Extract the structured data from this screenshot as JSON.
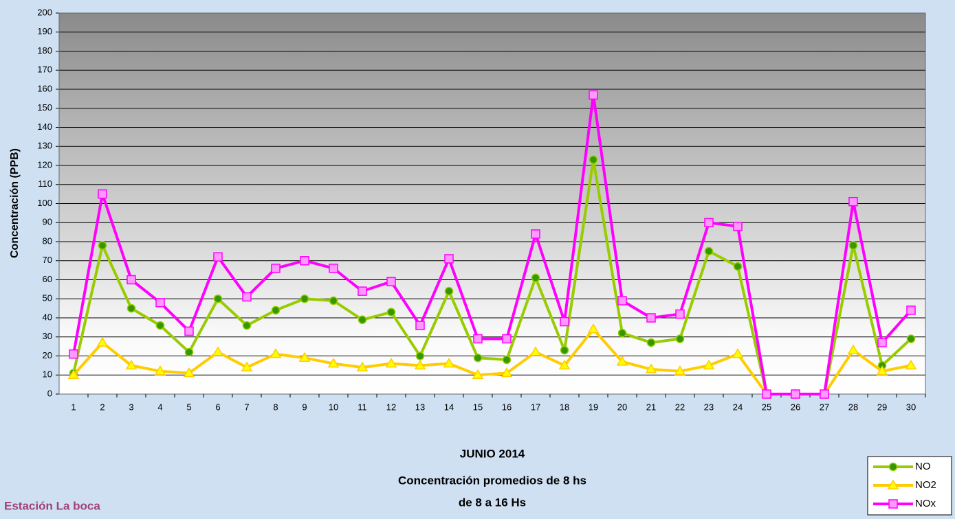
{
  "chart_data": {
    "type": "line",
    "title": [
      "JUNIO 2014",
      "Concentración promedios de 8 hs",
      "de 8 a 16 Hs"
    ],
    "note": "Estación La boca",
    "y_label": "Concentración (PPB)",
    "categories": [
      "1",
      "2",
      "3",
      "4",
      "5",
      "6",
      "7",
      "8",
      "9",
      "10",
      "11",
      "12",
      "13",
      "14",
      "15",
      "16",
      "17",
      "18",
      "19",
      "20",
      "21",
      "22",
      "23",
      "24",
      "25",
      "26",
      "27",
      "28",
      "29",
      "30"
    ],
    "series": [
      {
        "name": "NO",
        "color": "#99cc00",
        "marker": "circle",
        "marker_color": "#339900",
        "values": [
          11,
          78,
          45,
          36,
          22,
          50,
          36,
          44,
          50,
          49,
          39,
          43,
          20,
          54,
          19,
          18,
          61,
          23,
          123,
          32,
          27,
          29,
          75,
          67,
          0,
          0,
          0,
          78,
          15,
          29
        ]
      },
      {
        "name": "NO2",
        "color": "#ffcc00",
        "marker": "triangle",
        "marker_color": "#ffff00",
        "values": [
          10,
          27,
          15,
          12,
          11,
          22,
          14,
          21,
          19,
          16,
          14,
          16,
          15,
          16,
          10,
          11,
          22,
          15,
          34,
          17,
          13,
          12,
          15,
          21,
          0,
          0,
          0,
          23,
          12,
          15
        ]
      },
      {
        "name": "NOx",
        "color": "#ff00ff",
        "marker": "square",
        "marker_color": "#ff99ff",
        "values": [
          21,
          105,
          60,
          48,
          33,
          72,
          51,
          66,
          70,
          66,
          54,
          59,
          36,
          71,
          29,
          29,
          84,
          38,
          157,
          49,
          40,
          42,
          90,
          88,
          0,
          0,
          0,
          101,
          27,
          44
        ]
      }
    ],
    "ylim": [
      0,
      200
    ],
    "yticks": [
      0,
      10,
      20,
      30,
      40,
      50,
      60,
      70,
      80,
      90,
      100,
      110,
      120,
      130,
      140,
      150,
      160,
      170,
      180,
      190,
      200
    ],
    "grid": true
  }
}
